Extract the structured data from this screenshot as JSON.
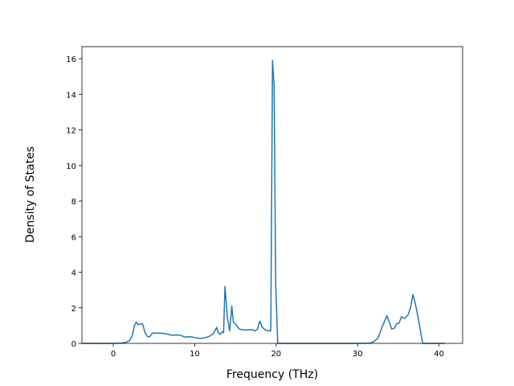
{
  "chart_data": {
    "type": "line",
    "x_label": "Frequency (THz)",
    "y_label": "Density of States",
    "x": [
      -3.8,
      0,
      1,
      1.5,
      2,
      2.3,
      2.6,
      2.8,
      3.1,
      3.4,
      3.6,
      3.9,
      4.2,
      4.5,
      4.8,
      5.3,
      5.8,
      6.3,
      6.8,
      7.3,
      7.8,
      8.3,
      8.8,
      9.3,
      9.8,
      10.3,
      10.8,
      11.3,
      11.8,
      12.3,
      12.7,
      12.9,
      13.1,
      13.4,
      13.55,
      13.72,
      14.0,
      14.3,
      14.55,
      14.75,
      15.0,
      15.5,
      16,
      16.5,
      17,
      17.4,
      17.7,
      18.0,
      18.3,
      18.7,
      19.1,
      19.35,
      19.55,
      19.75,
      19.95,
      20.2,
      21,
      30,
      31.5,
      32,
      32.5,
      33.0,
      33.6,
      33.9,
      34.2,
      34.5,
      34.8,
      35.1,
      35.4,
      35.8,
      36.2,
      36.5,
      36.8,
      37.0,
      37.3,
      38,
      40.7
    ],
    "series": [
      {
        "name": "DOS",
        "color": "#1f77b4",
        "values": [
          0,
          0,
          0.02,
          0.05,
          0.15,
          0.4,
          1.0,
          1.2,
          1.05,
          1.1,
          1.1,
          0.6,
          0.38,
          0.38,
          0.58,
          0.58,
          0.58,
          0.55,
          0.5,
          0.45,
          0.48,
          0.45,
          0.35,
          0.38,
          0.35,
          0.3,
          0.28,
          0.32,
          0.4,
          0.55,
          0.9,
          0.6,
          0.5,
          0.65,
          0.6,
          3.2,
          1.5,
          0.7,
          2.1,
          1.2,
          1.1,
          0.8,
          0.75,
          0.75,
          0.78,
          0.7,
          0.8,
          1.25,
          0.9,
          0.75,
          0.7,
          0.7,
          15.9,
          14.5,
          3.3,
          0,
          0,
          0,
          0.02,
          0.1,
          0.3,
          0.9,
          1.55,
          1.2,
          0.8,
          0.85,
          1.1,
          1.15,
          1.5,
          1.4,
          1.6,
          2.0,
          2.75,
          2.4,
          1.8,
          0,
          0
        ]
      }
    ],
    "xlim": [
      -3.85,
      42.9
    ],
    "ylim": [
      0,
      16.68
    ],
    "xticks": [
      0,
      10,
      20,
      30,
      40
    ],
    "yticks": [
      0,
      2,
      4,
      6,
      8,
      10,
      12,
      14,
      16
    ]
  }
}
